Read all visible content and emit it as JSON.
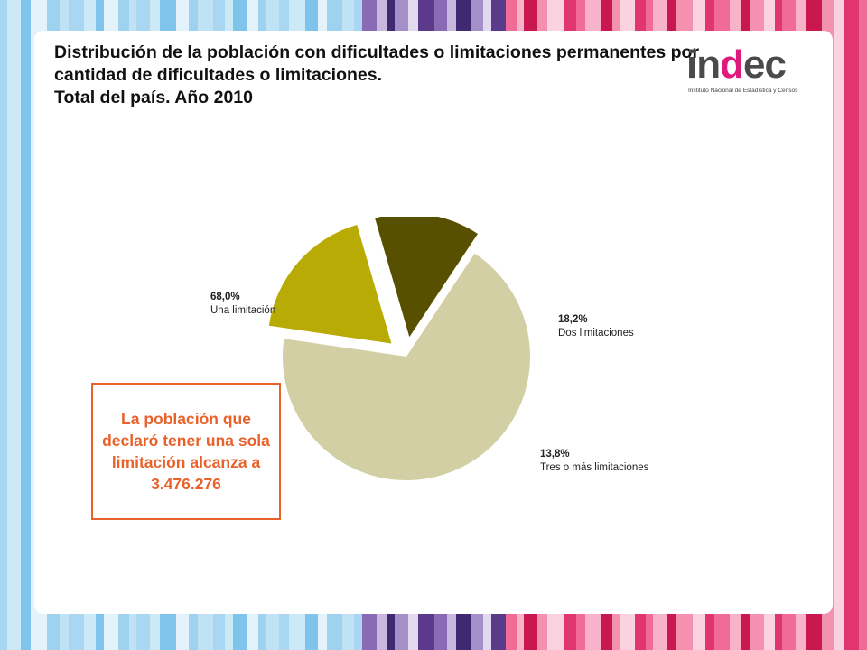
{
  "title": {
    "line1": "Distribución de la población con dificultades o limitaciones permanentes por",
    "line2": "cantidad de dificultades o limitaciones.",
    "line3": "Total del país. Año 2010"
  },
  "logo": {
    "word_start": "in",
    "word_accent": "d",
    "word_end": "ec",
    "subtitle": "Instituto Nacional de Estadística y Censos"
  },
  "callout": {
    "text": "La población que declaró tener una sola limitación alcanza a 3.476.276"
  },
  "colors": {
    "una": "#d3cfa4",
    "dos": "#b9ab05",
    "tres": "#575000",
    "callout": "#e8622a",
    "brand_pink": "#e0197d"
  },
  "chart_data": {
    "type": "pie",
    "title": "Distribución de la población con dificultades o limitaciones permanentes por cantidad de dificultades o limitaciones. Total del país. Año 2010",
    "slices": [
      {
        "label": "Una limitación",
        "value": 68.0,
        "display": "68,0%",
        "color": "#d3cfa4",
        "exploded": false
      },
      {
        "label": "Dos limitaciones",
        "value": 18.2,
        "display": "18,2%",
        "color": "#b9ab05",
        "exploded": true
      },
      {
        "label": "Tres o más limitaciones",
        "value": 13.8,
        "display": "13,8%",
        "color": "#575000",
        "exploded": true
      }
    ]
  }
}
